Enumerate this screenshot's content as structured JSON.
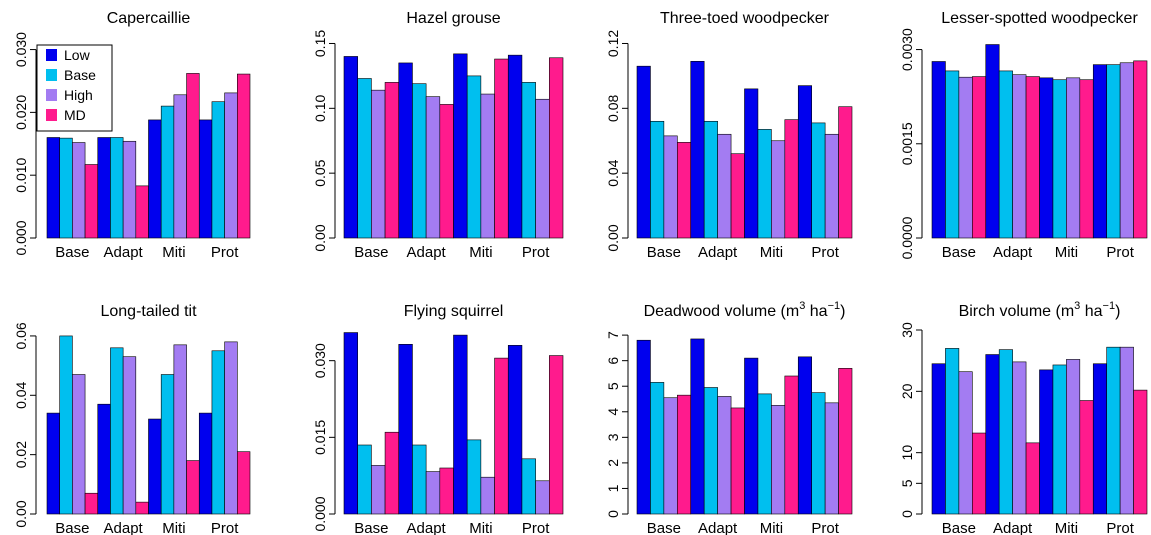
{
  "colors": {
    "Low": "#0000ee",
    "Base": "#00bfef",
    "High": "#a37cf2",
    "MD": "#ff1b8d"
  },
  "legend": {
    "entries": [
      "Low",
      "Base",
      "High",
      "MD"
    ],
    "placement": "top-left of first panel"
  },
  "chart_data": [
    {
      "type": "bar",
      "title": "Capercaillie",
      "categories": [
        "Base",
        "Adapt",
        "Miti",
        "Prot"
      ],
      "ylim": [
        0,
        0.032
      ],
      "yticks": [
        "0.000",
        "0.010",
        "0.020",
        "0.030"
      ],
      "ytick_values": [
        0,
        0.01,
        0.02,
        0.03
      ],
      "series": [
        {
          "name": "Low",
          "values": [
            0.016,
            0.016,
            0.0188,
            0.0188
          ]
        },
        {
          "name": "Base",
          "values": [
            0.0159,
            0.016,
            0.021,
            0.0217
          ]
        },
        {
          "name": "High",
          "values": [
            0.0152,
            0.0154,
            0.0228,
            0.0231
          ]
        },
        {
          "name": "MD",
          "values": [
            0.0117,
            0.0083,
            0.0262,
            0.0261
          ]
        }
      ]
    },
    {
      "type": "bar",
      "title": "Hazel grouse",
      "categories": [
        "Base",
        "Adapt",
        "Miti",
        "Prot"
      ],
      "ylim": [
        0,
        0.155
      ],
      "yticks": [
        "0.00",
        "0.05",
        "0.10",
        "0.15"
      ],
      "ytick_values": [
        0,
        0.05,
        0.1,
        0.15
      ],
      "series": [
        {
          "name": "Low",
          "values": [
            0.14,
            0.135,
            0.142,
            0.141
          ]
        },
        {
          "name": "Base",
          "values": [
            0.123,
            0.119,
            0.125,
            0.12
          ]
        },
        {
          "name": "High",
          "values": [
            0.114,
            0.109,
            0.111,
            0.107
          ]
        },
        {
          "name": "MD",
          "values": [
            0.12,
            0.103,
            0.138,
            0.139
          ]
        }
      ]
    },
    {
      "type": "bar",
      "title": "Three-toed woodpecker",
      "categories": [
        "Base",
        "Adapt",
        "Miti",
        "Prot"
      ],
      "ylim": [
        0,
        0.124
      ],
      "yticks": [
        "0.00",
        "0.04",
        "0.08",
        "0.12"
      ],
      "ytick_values": [
        0,
        0.04,
        0.08,
        0.12
      ],
      "series": [
        {
          "name": "Low",
          "values": [
            0.106,
            0.109,
            0.092,
            0.094
          ]
        },
        {
          "name": "Base",
          "values": [
            0.072,
            0.072,
            0.067,
            0.071
          ]
        },
        {
          "name": "High",
          "values": [
            0.063,
            0.064,
            0.06,
            0.064
          ]
        },
        {
          "name": "MD",
          "values": [
            0.059,
            0.052,
            0.073,
            0.081
          ]
        }
      ]
    },
    {
      "type": "bar",
      "title": "Lesser-spotted woodpecker",
      "categories": [
        "Base",
        "Adapt",
        "Miti",
        "Prot"
      ],
      "ylim": [
        0,
        0.0032
      ],
      "yticks": [
        "0.0000",
        "0.0015",
        "0.0030"
      ],
      "ytick_values": [
        0,
        0.0015,
        0.003
      ],
      "series": [
        {
          "name": "Low",
          "values": [
            0.00281,
            0.00308,
            0.00255,
            0.00276
          ]
        },
        {
          "name": "Base",
          "values": [
            0.00266,
            0.00266,
            0.00252,
            0.00276
          ]
        },
        {
          "name": "High",
          "values": [
            0.00256,
            0.0026,
            0.00255,
            0.00279
          ]
        },
        {
          "name": "MD",
          "values": [
            0.00257,
            0.00257,
            0.00252,
            0.00282
          ]
        }
      ]
    },
    {
      "type": "bar",
      "title": "Long-tailed tit",
      "categories": [
        "Base",
        "Adapt",
        "Miti",
        "Prot"
      ],
      "ylim": [
        0,
        0.062
      ],
      "yticks": [
        "0.00",
        "0.02",
        "0.04",
        "0.06"
      ],
      "ytick_values": [
        0,
        0.02,
        0.04,
        0.06
      ],
      "series": [
        {
          "name": "Low",
          "values": [
            0.034,
            0.037,
            0.032,
            0.034
          ]
        },
        {
          "name": "Base",
          "values": [
            0.06,
            0.056,
            0.047,
            0.055
          ]
        },
        {
          "name": "High",
          "values": [
            0.047,
            0.053,
            0.057,
            0.058
          ]
        },
        {
          "name": "MD",
          "values": [
            0.007,
            0.004,
            0.018,
            0.021
          ]
        }
      ]
    },
    {
      "type": "bar",
      "title": "Flying squirrel",
      "categories": [
        "Base",
        "Adapt",
        "Miti",
        "Prot"
      ],
      "ylim": [
        0,
        0.036
      ],
      "yticks": [
        "0.000",
        "0.015",
        "0.030"
      ],
      "ytick_values": [
        0,
        0.015,
        0.03
      ],
      "series": [
        {
          "name": "Low",
          "values": [
            0.0355,
            0.0332,
            0.035,
            0.033
          ]
        },
        {
          "name": "Base",
          "values": [
            0.0135,
            0.0135,
            0.0145,
            0.0108
          ]
        },
        {
          "name": "High",
          "values": [
            0.0095,
            0.0083,
            0.0072,
            0.0065
          ]
        },
        {
          "name": "MD",
          "values": [
            0.016,
            0.009,
            0.0305,
            0.031
          ]
        }
      ]
    },
    {
      "type": "bar",
      "title": "Deadwood volume",
      "ylabel_unit_parts": [
        "(m",
        "3",
        " ha",
        "−1",
        ")"
      ],
      "categories": [
        "Base",
        "Adapt",
        "Miti",
        "Prot"
      ],
      "ylim": [
        0,
        7.2
      ],
      "yticks": [
        "0",
        "1",
        "2",
        "3",
        "4",
        "5",
        "6",
        "7"
      ],
      "ytick_values": [
        0,
        1,
        2,
        3,
        4,
        5,
        6,
        7
      ],
      "series": [
        {
          "name": "Low",
          "values": [
            6.8,
            6.85,
            6.1,
            6.15
          ]
        },
        {
          "name": "Base",
          "values": [
            5.15,
            4.95,
            4.7,
            4.75
          ]
        },
        {
          "name": "High",
          "values": [
            4.55,
            4.6,
            4.25,
            4.35
          ]
        },
        {
          "name": "MD",
          "values": [
            4.65,
            4.15,
            5.4,
            5.7
          ]
        }
      ]
    },
    {
      "type": "bar",
      "title": "Birch volume",
      "ylabel_unit_parts": [
        "(m",
        "3",
        " ha",
        "−1",
        ")"
      ],
      "categories": [
        "Base",
        "Adapt",
        "Miti",
        "Prot"
      ],
      "ylim": [
        0,
        30
      ],
      "yticks": [
        "0",
        "5",
        "10",
        "20",
        "30"
      ],
      "ytick_values": [
        0,
        5,
        10,
        20,
        30
      ],
      "series": [
        {
          "name": "Low",
          "values": [
            24.5,
            26,
            23.5,
            24.5
          ]
        },
        {
          "name": "Base",
          "values": [
            27,
            26.8,
            24.3,
            27.2
          ]
        },
        {
          "name": "High",
          "values": [
            23.2,
            24.8,
            25.2,
            27.2
          ]
        },
        {
          "name": "MD",
          "values": [
            13.2,
            11.6,
            18.5,
            20.2
          ]
        }
      ]
    }
  ]
}
